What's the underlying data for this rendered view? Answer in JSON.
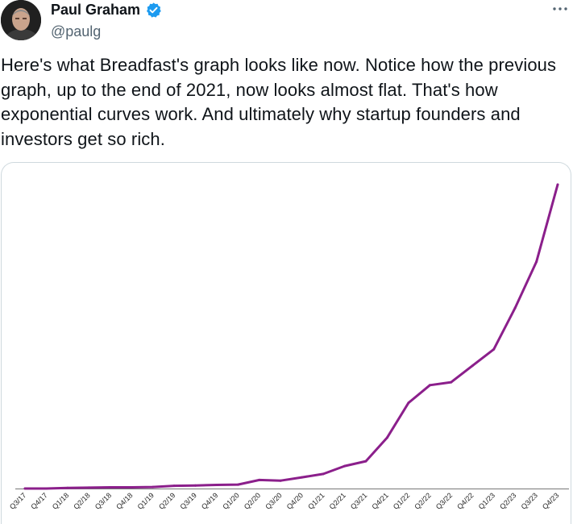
{
  "author": {
    "name": "Paul Graham",
    "handle": "@paulg",
    "verified_icon": "verified-badge-icon",
    "verified_color": "#1d9bf0"
  },
  "menu": {
    "icon": "more-horizontal-icon"
  },
  "tweet": {
    "text": "Here's what Breadfast's graph looks like now. Notice how the previous graph, up to the end of 2021, now looks almost flat. That's how exponential curves work. And ultimately why startup founders and investors get so rich."
  },
  "chart_data": {
    "type": "line",
    "title": "",
    "xlabel": "",
    "ylabel": "",
    "line_color": "#8b1f8b",
    "categories": [
      "Q3/17",
      "Q4/17",
      "Q1/18",
      "Q2/18",
      "Q3/18",
      "Q4/18",
      "Q1/19",
      "Q2/19",
      "Q3/19",
      "Q4/19",
      "Q1/20",
      "Q2/20",
      "Q3/20",
      "Q4/20",
      "Q1/21",
      "Q2/21",
      "Q3/21",
      "Q4/21",
      "Q1/22",
      "Q2/22",
      "Q3/22",
      "Q4/22",
      "Q1/23",
      "Q2/23",
      "Q3/23",
      "Q4/23"
    ],
    "values": [
      0.0,
      0.0,
      0.2,
      0.3,
      0.4,
      0.4,
      0.5,
      0.9,
      1.0,
      1.2,
      1.3,
      2.8,
      2.6,
      3.7,
      4.8,
      7.4,
      9.0,
      16.8,
      28.2,
      34.0,
      35.0,
      40.4,
      45.8,
      59.4,
      74.6,
      100.0
    ],
    "ylim": [
      0,
      100
    ],
    "grid": false,
    "legend": "none"
  }
}
